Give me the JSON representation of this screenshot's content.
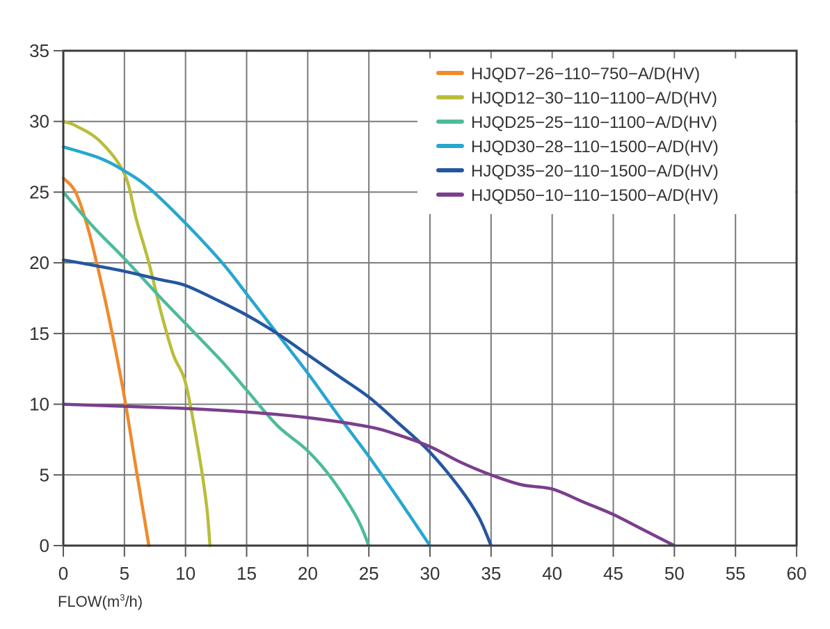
{
  "chart_data": {
    "type": "line",
    "title": "",
    "xlabel": "FLOW(m³/h)",
    "xlabel_parts": {
      "main": "FLOW(m",
      "sup": "3",
      "tail": "/h)"
    },
    "ylabel": "",
    "xlim": [
      0,
      60
    ],
    "ylim": [
      0,
      35
    ],
    "xticks": [
      0,
      5,
      10,
      15,
      20,
      25,
      30,
      35,
      40,
      45,
      50,
      55,
      60
    ],
    "xtick_labels": [
      "0",
      "5",
      "10",
      "15",
      "20",
      "25",
      "30",
      "35",
      "40",
      "45",
      "50",
      "55",
      "60"
    ],
    "yticks": [
      0,
      5,
      10,
      15,
      20,
      25,
      30,
      35
    ],
    "ytick_labels": [
      "0",
      "5",
      "10",
      "15",
      "20",
      "25",
      "30",
      "35"
    ],
    "grid": true,
    "legend_position": "top-right",
    "series": [
      {
        "name": "HJQD7−26−110−750−A/D(HV)",
        "color": "#f08a2c",
        "points": [
          [
            0,
            26
          ],
          [
            1,
            25
          ],
          [
            2,
            22.5
          ],
          [
            3,
            19
          ],
          [
            4,
            15
          ],
          [
            5,
            10.5
          ],
          [
            6,
            5.2
          ],
          [
            7,
            0
          ]
        ]
      },
      {
        "name": "HJQD12−30−110−1100−A/D(HV)",
        "color": "#b9bd3a",
        "points": [
          [
            0,
            30
          ],
          [
            1,
            29.7
          ],
          [
            3,
            28.6
          ],
          [
            5,
            26.3
          ],
          [
            6,
            23
          ],
          [
            7,
            20
          ],
          [
            8,
            16.5
          ],
          [
            9,
            13.5
          ],
          [
            10,
            11.5
          ],
          [
            11,
            7
          ],
          [
            11.7,
            3
          ],
          [
            12,
            0
          ]
        ]
      },
      {
        "name": "HJQD25−25−110−1100−A/D(HV)",
        "color": "#4dbb9a",
        "points": [
          [
            0,
            25
          ],
          [
            2.5,
            22.5
          ],
          [
            5,
            20.3
          ],
          [
            8,
            17.5
          ],
          [
            10,
            15.7
          ],
          [
            13,
            13
          ],
          [
            15,
            11
          ],
          [
            17.5,
            8.5
          ],
          [
            20,
            6.7
          ],
          [
            22,
            4.7
          ],
          [
            24,
            2
          ],
          [
            25,
            0
          ]
        ]
      },
      {
        "name": "HJQD30−28−110−1500−A/D(HV)",
        "color": "#27a6d0",
        "points": [
          [
            0,
            28.2
          ],
          [
            3,
            27.4
          ],
          [
            5,
            26.5
          ],
          [
            7,
            25.3
          ],
          [
            10,
            22.8
          ],
          [
            13,
            20
          ],
          [
            15,
            17.8
          ],
          [
            17.5,
            15
          ],
          [
            20,
            12.2
          ],
          [
            22.5,
            9.2
          ],
          [
            25,
            6.3
          ],
          [
            27.5,
            3.2
          ],
          [
            30,
            0
          ]
        ]
      },
      {
        "name": "HJQD35−20−110−1500−A/D(HV)",
        "color": "#2556a0",
        "points": [
          [
            0,
            20.2
          ],
          [
            2,
            19.9
          ],
          [
            5,
            19.4
          ],
          [
            8,
            18.8
          ],
          [
            10,
            18.4
          ],
          [
            12.5,
            17.4
          ],
          [
            15,
            16.3
          ],
          [
            17.5,
            15
          ],
          [
            20,
            13.5
          ],
          [
            22.5,
            12
          ],
          [
            25,
            10.5
          ],
          [
            27.5,
            8.6
          ],
          [
            30,
            6.6
          ],
          [
            32.5,
            4
          ],
          [
            34,
            2
          ],
          [
            35,
            0
          ]
        ]
      },
      {
        "name": "HJQD50−10−110−1500−A/D(HV)",
        "color": "#7a3f8c",
        "points": [
          [
            0,
            10
          ],
          [
            5,
            9.85
          ],
          [
            10,
            9.7
          ],
          [
            15,
            9.45
          ],
          [
            20,
            9.05
          ],
          [
            25,
            8.4
          ],
          [
            27.5,
            7.8
          ],
          [
            30,
            7
          ],
          [
            32.5,
            5.9
          ],
          [
            35,
            5
          ],
          [
            37.5,
            4.3
          ],
          [
            40,
            4
          ],
          [
            42.5,
            3.1
          ],
          [
            45,
            2.2
          ],
          [
            47.5,
            1.1
          ],
          [
            50,
            0
          ]
        ]
      }
    ]
  }
}
